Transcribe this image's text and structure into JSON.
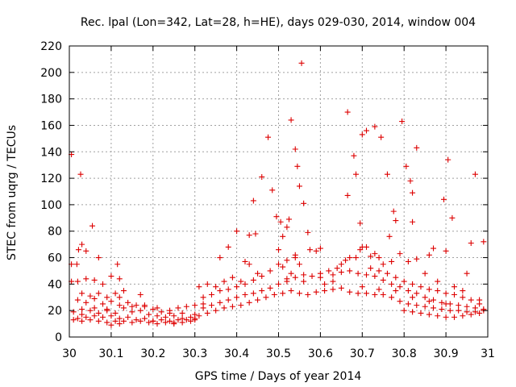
{
  "chart_data": {
    "type": "scatter",
    "title": "Rec. lpal (Lon=342, Lat=28, h=HE), days 029-030, 2014, window 004",
    "xlabel": "GPS time / Days of year 2014",
    "ylabel": "STEC from uqrg / TECUs",
    "xlim": [
      30,
      31
    ],
    "ylim": [
      0,
      220
    ],
    "xticks": [
      30,
      30.1,
      30.2,
      30.3,
      30.4,
      30.5,
      30.6,
      30.7,
      30.8,
      30.9,
      31
    ],
    "xtick_labels": [
      "30",
      "30.1",
      "30.2",
      "30.3",
      "30.4",
      "30.5",
      "30.6",
      "30.7",
      "30.8",
      "30.9",
      "31"
    ],
    "yticks": [
      0,
      20,
      40,
      60,
      80,
      100,
      120,
      140,
      160,
      180,
      200,
      220
    ],
    "ytick_labels": [
      "0",
      "20",
      "40",
      "60",
      "80",
      "100",
      "120",
      "140",
      "160",
      "180",
      "200",
      "220"
    ],
    "grid": true,
    "marker": "+",
    "color": "#dd0000",
    "series": [
      {
        "name": "STEC",
        "points": [
          [
            30.005,
            138
          ],
          [
            30.027,
            123
          ],
          [
            30.005,
            55
          ],
          [
            30.005,
            42
          ],
          [
            30.018,
            55
          ],
          [
            30.022,
            66
          ],
          [
            30.03,
            70
          ],
          [
            30.04,
            65
          ],
          [
            30.055,
            84
          ],
          [
            30.07,
            60
          ],
          [
            30.115,
            55
          ],
          [
            30.01,
            19
          ],
          [
            30.03,
            17
          ],
          [
            30.05,
            20
          ],
          [
            30.07,
            18
          ],
          [
            30.09,
            20
          ],
          [
            30.11,
            18
          ],
          [
            30.13,
            22
          ],
          [
            30.15,
            19
          ],
          [
            30.17,
            20
          ],
          [
            30.19,
            17
          ],
          [
            30.21,
            16
          ],
          [
            30.23,
            15
          ],
          [
            30.25,
            16
          ],
          [
            30.27,
            14
          ],
          [
            30.29,
            15
          ],
          [
            30.01,
            13
          ],
          [
            30.03,
            12
          ],
          [
            30.05,
            13
          ],
          [
            30.07,
            12
          ],
          [
            30.09,
            11
          ],
          [
            30.11,
            12
          ],
          [
            30.13,
            12
          ],
          [
            30.15,
            11
          ],
          [
            30.17,
            12
          ],
          [
            30.19,
            11
          ],
          [
            30.21,
            10
          ],
          [
            30.23,
            11
          ],
          [
            30.25,
            10
          ],
          [
            30.27,
            11
          ],
          [
            30.29,
            12
          ],
          [
            30.02,
            28
          ],
          [
            30.04,
            26
          ],
          [
            30.06,
            29
          ],
          [
            30.08,
            25
          ],
          [
            30.1,
            27
          ],
          [
            30.12,
            30
          ],
          [
            30.14,
            26
          ],
          [
            30.16,
            24
          ],
          [
            30.18,
            23
          ],
          [
            30.2,
            21
          ],
          [
            30.22,
            19
          ],
          [
            30.24,
            18
          ],
          [
            30.03,
            33
          ],
          [
            30.05,
            31
          ],
          [
            30.07,
            33
          ],
          [
            30.09,
            30
          ],
          [
            30.11,
            33
          ],
          [
            30.13,
            35
          ],
          [
            30.17,
            32
          ],
          [
            30.02,
            42
          ],
          [
            30.04,
            44
          ],
          [
            30.06,
            43
          ],
          [
            30.08,
            40
          ],
          [
            30.1,
            46
          ],
          [
            30.12,
            44
          ],
          [
            30.02,
            14
          ],
          [
            30.04,
            15
          ],
          [
            30.06,
            16
          ],
          [
            30.08,
            15
          ],
          [
            30.1,
            16
          ],
          [
            30.12,
            14
          ],
          [
            30.14,
            15
          ],
          [
            30.16,
            13
          ],
          [
            30.18,
            14
          ],
          [
            30.2,
            12
          ],
          [
            30.22,
            13
          ],
          [
            30.24,
            12
          ],
          [
            30.26,
            13
          ],
          [
            30.28,
            13
          ],
          [
            30.3,
            14
          ],
          [
            30.03,
            21
          ],
          [
            30.06,
            22
          ],
          [
            30.09,
            21
          ],
          [
            30.12,
            24
          ],
          [
            30.15,
            23
          ],
          [
            30.18,
            24
          ],
          [
            30.21,
            22
          ],
          [
            30.24,
            20
          ],
          [
            30.27,
            18
          ],
          [
            30.3,
            17
          ],
          [
            30.1,
            9
          ],
          [
            30.12,
            10
          ],
          [
            30.2,
            12
          ],
          [
            30.25,
            11
          ],
          [
            30.3,
            13
          ],
          [
            30.26,
            22
          ],
          [
            30.28,
            23
          ],
          [
            30.3,
            24
          ],
          [
            30.32,
            25
          ],
          [
            30.31,
            16
          ],
          [
            30.33,
            18
          ],
          [
            30.35,
            20
          ],
          [
            30.37,
            22
          ],
          [
            30.39,
            23
          ],
          [
            30.41,
            24
          ],
          [
            30.43,
            26
          ],
          [
            30.45,
            28
          ],
          [
            30.47,
            30
          ],
          [
            30.49,
            32
          ],
          [
            30.51,
            33
          ],
          [
            30.53,
            35
          ],
          [
            30.55,
            33
          ],
          [
            30.57,
            32
          ],
          [
            30.59,
            34
          ],
          [
            30.32,
            22
          ],
          [
            30.34,
            24
          ],
          [
            30.36,
            26
          ],
          [
            30.38,
            28
          ],
          [
            30.4,
            30
          ],
          [
            30.42,
            32
          ],
          [
            30.44,
            33
          ],
          [
            30.46,
            35
          ],
          [
            30.48,
            37
          ],
          [
            30.5,
            40
          ],
          [
            30.52,
            42
          ],
          [
            30.54,
            45
          ],
          [
            30.56,
            47
          ],
          [
            30.58,
            46
          ],
          [
            30.6,
            45
          ],
          [
            30.32,
            30
          ],
          [
            30.34,
            32
          ],
          [
            30.36,
            35
          ],
          [
            30.38,
            36
          ],
          [
            30.4,
            38
          ],
          [
            30.42,
            40
          ],
          [
            30.44,
            43
          ],
          [
            30.46,
            46
          ],
          [
            30.48,
            50
          ],
          [
            30.5,
            55
          ],
          [
            30.52,
            58
          ],
          [
            30.54,
            62
          ],
          [
            30.31,
            38
          ],
          [
            30.33,
            40
          ],
          [
            30.35,
            38
          ],
          [
            30.37,
            42
          ],
          [
            30.39,
            45
          ],
          [
            30.41,
            42
          ],
          [
            30.43,
            55
          ],
          [
            30.45,
            48
          ],
          [
            30.36,
            60
          ],
          [
            30.38,
            68
          ],
          [
            30.4,
            80
          ],
          [
            30.42,
            57
          ],
          [
            30.43,
            77
          ],
          [
            30.445,
            78
          ],
          [
            30.44,
            103
          ],
          [
            30.46,
            121
          ],
          [
            30.475,
            151
          ],
          [
            30.485,
            111
          ],
          [
            30.495,
            91
          ],
          [
            30.505,
            87
          ],
          [
            30.51,
            76
          ],
          [
            30.52,
            83
          ],
          [
            30.525,
            89
          ],
          [
            30.53,
            164
          ],
          [
            30.54,
            142
          ],
          [
            30.545,
            129
          ],
          [
            30.55,
            114
          ],
          [
            30.555,
            207
          ],
          [
            30.56,
            101
          ],
          [
            30.57,
            79
          ],
          [
            30.575,
            66
          ],
          [
            30.59,
            65
          ],
          [
            30.6,
            67
          ],
          [
            30.5,
            66
          ],
          [
            30.51,
            53
          ],
          [
            30.52,
            44
          ],
          [
            30.53,
            48
          ],
          [
            30.54,
            60
          ],
          [
            30.55,
            55
          ],
          [
            30.56,
            42
          ],
          [
            30.61,
            40
          ],
          [
            30.63,
            42
          ],
          [
            30.65,
            55
          ],
          [
            30.67,
            60
          ],
          [
            30.685,
            60
          ],
          [
            30.695,
            66
          ],
          [
            30.6,
            48
          ],
          [
            30.62,
            50
          ],
          [
            30.64,
            52
          ],
          [
            30.66,
            58
          ],
          [
            30.665,
            170
          ],
          [
            30.68,
            137
          ],
          [
            30.685,
            123
          ],
          [
            30.665,
            107
          ],
          [
            30.695,
            86
          ],
          [
            30.7,
            153
          ],
          [
            30.71,
            156
          ],
          [
            30.73,
            159
          ],
          [
            30.745,
            151
          ],
          [
            30.76,
            123
          ],
          [
            30.775,
            95
          ],
          [
            30.795,
            163
          ],
          [
            30.805,
            129
          ],
          [
            30.815,
            118
          ],
          [
            30.82,
            109
          ],
          [
            30.83,
            143
          ],
          [
            30.82,
            87
          ],
          [
            30.78,
            88
          ],
          [
            30.765,
            76
          ],
          [
            30.7,
            68
          ],
          [
            30.71,
            68
          ],
          [
            30.72,
            61
          ],
          [
            30.73,
            63
          ],
          [
            30.74,
            60
          ],
          [
            30.75,
            55
          ],
          [
            30.77,
            57
          ],
          [
            30.79,
            63
          ],
          [
            30.81,
            57
          ],
          [
            30.83,
            59
          ],
          [
            30.86,
            62
          ],
          [
            30.87,
            67
          ],
          [
            30.9,
            65
          ],
          [
            30.895,
            104
          ],
          [
            30.905,
            134
          ],
          [
            30.915,
            90
          ],
          [
            30.97,
            123
          ],
          [
            30.99,
            72
          ],
          [
            30.96,
            71
          ],
          [
            30.61,
            35
          ],
          [
            30.63,
            36
          ],
          [
            30.65,
            37
          ],
          [
            30.67,
            34
          ],
          [
            30.69,
            33
          ],
          [
            30.71,
            33
          ],
          [
            30.73,
            32
          ],
          [
            30.75,
            32
          ],
          [
            30.77,
            30
          ],
          [
            30.79,
            27
          ],
          [
            30.81,
            25
          ],
          [
            30.83,
            24
          ],
          [
            30.85,
            23
          ],
          [
            30.87,
            22
          ],
          [
            30.89,
            21
          ],
          [
            30.91,
            20
          ],
          [
            30.93,
            20
          ],
          [
            30.95,
            19
          ],
          [
            30.97,
            19
          ],
          [
            30.99,
            20
          ],
          [
            30.63,
            47
          ],
          [
            30.65,
            49
          ],
          [
            30.67,
            50
          ],
          [
            30.69,
            48
          ],
          [
            30.71,
            47
          ],
          [
            30.73,
            46
          ],
          [
            30.75,
            43
          ],
          [
            30.77,
            40
          ],
          [
            30.79,
            38
          ],
          [
            30.81,
            35
          ],
          [
            30.83,
            33
          ],
          [
            30.85,
            30
          ],
          [
            30.87,
            28
          ],
          [
            30.89,
            26
          ],
          [
            30.91,
            25
          ],
          [
            30.93,
            24
          ],
          [
            30.95,
            23
          ],
          [
            30.97,
            22
          ],
          [
            30.99,
            21
          ],
          [
            30.72,
            52
          ],
          [
            30.74,
            50
          ],
          [
            30.76,
            48
          ],
          [
            30.78,
            45
          ],
          [
            30.8,
            42
          ],
          [
            30.82,
            40
          ],
          [
            30.84,
            38
          ],
          [
            30.86,
            36
          ],
          [
            30.88,
            35
          ],
          [
            30.9,
            33
          ],
          [
            30.92,
            32
          ],
          [
            30.94,
            30
          ],
          [
            30.96,
            28
          ],
          [
            30.98,
            28
          ],
          [
            30.8,
            20
          ],
          [
            30.82,
            19
          ],
          [
            30.84,
            18
          ],
          [
            30.86,
            17
          ],
          [
            30.88,
            16
          ],
          [
            30.9,
            15
          ],
          [
            30.92,
            15
          ],
          [
            30.94,
            16
          ],
          [
            30.96,
            17
          ],
          [
            30.98,
            18
          ],
          [
            30.7,
            38
          ],
          [
            30.74,
            36
          ],
          [
            30.78,
            35
          ],
          [
            30.82,
            30
          ],
          [
            30.86,
            27
          ],
          [
            30.9,
            25
          ],
          [
            30.94,
            35
          ],
          [
            30.98,
            25
          ],
          [
            30.85,
            48
          ],
          [
            30.88,
            42
          ],
          [
            30.92,
            38
          ],
          [
            30.95,
            48
          ]
        ]
      }
    ]
  }
}
